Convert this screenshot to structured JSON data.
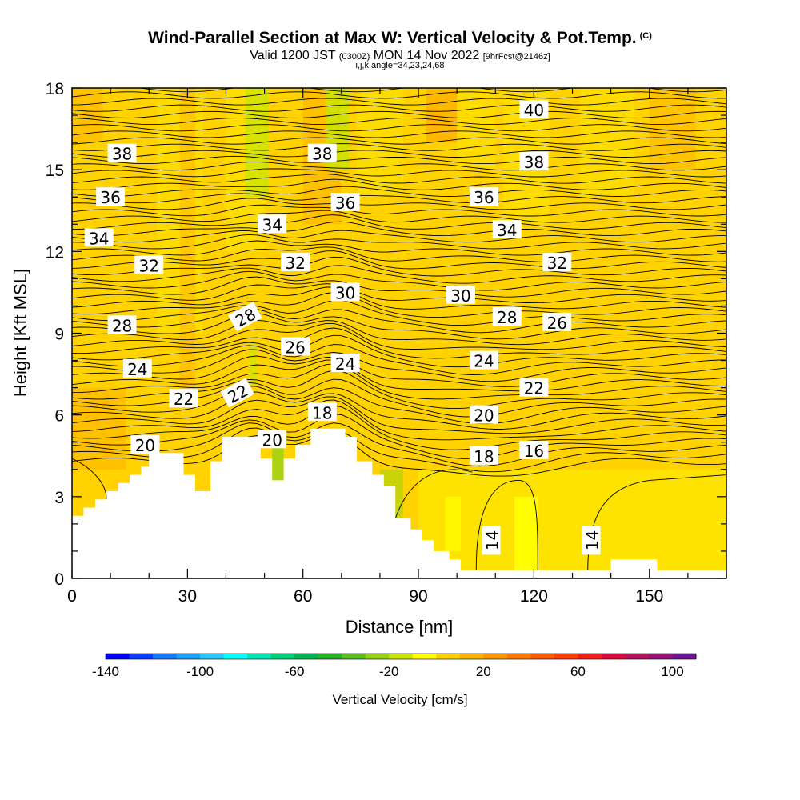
{
  "titles": {
    "main": "Wind-Parallel Section at Max W: Vertical Velocity & Pot.Temp.",
    "main_mark": "(C)",
    "valid_a": "Valid 1200 JST ",
    "valid_b": "(0300Z)",
    "valid_c": " MON 14 Nov 2022 ",
    "valid_d": "[9hrFcst@2146z]",
    "indices": "i,j,k,angle=34,23,24,68"
  },
  "chart_data": {
    "type": "heatmap",
    "xlabel": "Distance [nm]",
    "ylabel": "Height [Kft MSL]",
    "xlim": [
      0,
      170
    ],
    "ylim": [
      0,
      18
    ],
    "x_ticks": [
      0,
      30,
      60,
      90,
      120,
      150
    ],
    "y_ticks": [
      0,
      3,
      6,
      9,
      12,
      15,
      18
    ],
    "colorbar": {
      "title": "Vertical Velocity [cm/s]",
      "range": [
        -140,
        110
      ],
      "tick_values": [
        -140,
        -100,
        -60,
        -20,
        20,
        60,
        100
      ],
      "colors": [
        "#0000ff",
        "#0a3cff",
        "#1478ff",
        "#1ea0ff",
        "#28c8ff",
        "#00ffff",
        "#00e6b4",
        "#00d27a",
        "#00b450",
        "#28b428",
        "#5abe1e",
        "#96d214",
        "#c8e600",
        "#ffff00",
        "#ffd200",
        "#ffb400",
        "#ff9600",
        "#ff7800",
        "#ff5a00",
        "#ff3c00",
        "#f01e1e",
        "#dc0a3c",
        "#b4145a",
        "#961478",
        "#6e1496"
      ]
    },
    "background_field_color": "#ffd200",
    "contour_field": "Potential temperature",
    "contour_labels": [
      {
        "value": "40",
        "x": 120,
        "y": 17.2
      },
      {
        "value": "38",
        "x": 13,
        "y": 15.6
      },
      {
        "value": "38",
        "x": 65,
        "y": 15.6
      },
      {
        "value": "38",
        "x": 120,
        "y": 15.3
      },
      {
        "value": "36",
        "x": 10,
        "y": 14.0
      },
      {
        "value": "36",
        "x": 71,
        "y": 13.8
      },
      {
        "value": "36",
        "x": 107,
        "y": 14.0
      },
      {
        "value": "34",
        "x": 7,
        "y": 12.5
      },
      {
        "value": "34",
        "x": 52,
        "y": 13.0
      },
      {
        "value": "34",
        "x": 113,
        "y": 12.8
      },
      {
        "value": "32",
        "x": 20,
        "y": 11.5
      },
      {
        "value": "32",
        "x": 58,
        "y": 11.6
      },
      {
        "value": "32",
        "x": 126,
        "y": 11.6
      },
      {
        "value": "30",
        "x": 71,
        "y": 10.5
      },
      {
        "value": "30",
        "x": 101,
        "y": 10.4
      },
      {
        "value": "28",
        "x": 13,
        "y": 9.3
      },
      {
        "value": "28",
        "x": 45,
        "y": 9.6
      },
      {
        "value": "28",
        "x": 113,
        "y": 9.6
      },
      {
        "value": "26",
        "x": 58,
        "y": 8.5
      },
      {
        "value": "26",
        "x": 126,
        "y": 9.4
      },
      {
        "value": "24",
        "x": 17,
        "y": 7.7
      },
      {
        "value": "24",
        "x": 71,
        "y": 7.9
      },
      {
        "value": "24",
        "x": 107,
        "y": 8.0
      },
      {
        "value": "22",
        "x": 29,
        "y": 6.6
      },
      {
        "value": "22",
        "x": 43,
        "y": 6.8
      },
      {
        "value": "22",
        "x": 120,
        "y": 7.0
      },
      {
        "value": "20",
        "x": 19,
        "y": 4.9
      },
      {
        "value": "20",
        "x": 52,
        "y": 5.1
      },
      {
        "value": "20",
        "x": 107,
        "y": 6.0
      },
      {
        "value": "18",
        "x": 65,
        "y": 6.1
      },
      {
        "value": "18",
        "x": 107,
        "y": 4.5
      },
      {
        "value": "16",
        "x": 120,
        "y": 4.7
      },
      {
        "value": "14",
        "x": 109,
        "y": 1.4
      },
      {
        "value": "14",
        "x": 135,
        "y": 1.4
      }
    ],
    "terrain_profile": [
      [
        0,
        2.3
      ],
      [
        3,
        2.3
      ],
      [
        3,
        2.6
      ],
      [
        6,
        2.6
      ],
      [
        6,
        2.9
      ],
      [
        9,
        2.9
      ],
      [
        9,
        3.2
      ],
      [
        12,
        3.2
      ],
      [
        12,
        3.5
      ],
      [
        15,
        3.5
      ],
      [
        15,
        3.8
      ],
      [
        18,
        3.8
      ],
      [
        18,
        4.1
      ],
      [
        20,
        4.1
      ],
      [
        20,
        4.6
      ],
      [
        29,
        4.6
      ],
      [
        29,
        3.8
      ],
      [
        32,
        3.8
      ],
      [
        32,
        3.2
      ],
      [
        36,
        3.2
      ],
      [
        36,
        4.3
      ],
      [
        39,
        4.3
      ],
      [
        39,
        5.2
      ],
      [
        49,
        5.2
      ],
      [
        49,
        4.4
      ],
      [
        52,
        4.4
      ],
      [
        52,
        3.6
      ],
      [
        55,
        3.6
      ],
      [
        55,
        4.4
      ],
      [
        58,
        4.4
      ],
      [
        58,
        4.9
      ],
      [
        62,
        4.9
      ],
      [
        62,
        5.5
      ],
      [
        71,
        5.5
      ],
      [
        71,
        5.2
      ],
      [
        74,
        5.2
      ],
      [
        74,
        4.3
      ],
      [
        78,
        4.3
      ],
      [
        78,
        3.8
      ],
      [
        81,
        3.8
      ],
      [
        81,
        3.4
      ],
      [
        84,
        3.4
      ],
      [
        84,
        2.2
      ],
      [
        88,
        2.2
      ],
      [
        88,
        1.8
      ],
      [
        91,
        1.8
      ],
      [
        91,
        1.4
      ],
      [
        94,
        1.4
      ],
      [
        94,
        1.0
      ],
      [
        98,
        1.0
      ],
      [
        98,
        0.7
      ],
      [
        101,
        0.7
      ],
      [
        101,
        0.3
      ],
      [
        140,
        0.3
      ],
      [
        140,
        0.7
      ],
      [
        152,
        0.7
      ],
      [
        152,
        0.3
      ],
      [
        170,
        0.3
      ]
    ],
    "grid": false,
    "legend": "colorbar-bottom"
  }
}
